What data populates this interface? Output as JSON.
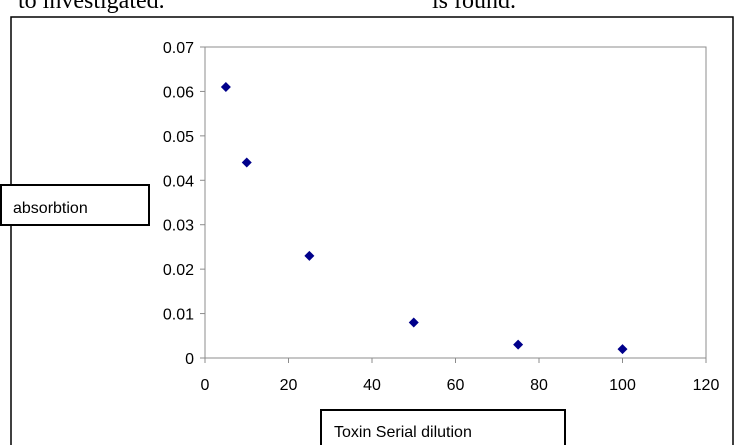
{
  "header_fragments": [
    "to investigated.",
    "is found."
  ],
  "chart_data": {
    "type": "scatter",
    "title": "",
    "xlabel": "Toxin Serial dilution",
    "ylabel": "absorbtion",
    "xlim": [
      0,
      120
    ],
    "ylim": [
      0,
      0.07
    ],
    "x_ticks": [
      "0",
      "20",
      "40",
      "60",
      "80",
      "100",
      "120"
    ],
    "y_ticks": [
      "0",
      "0.01",
      "0.02",
      "0.03",
      "0.04",
      "0.05",
      "0.06",
      "0.07"
    ],
    "grid": false,
    "legend": false,
    "marker": "diamond",
    "marker_color": "#00008B",
    "series": [
      {
        "x": [
          5,
          10,
          25,
          50,
          75,
          100
        ],
        "y": [
          0.061,
          0.044,
          0.023,
          0.008,
          0.003,
          0.002
        ]
      }
    ]
  }
}
